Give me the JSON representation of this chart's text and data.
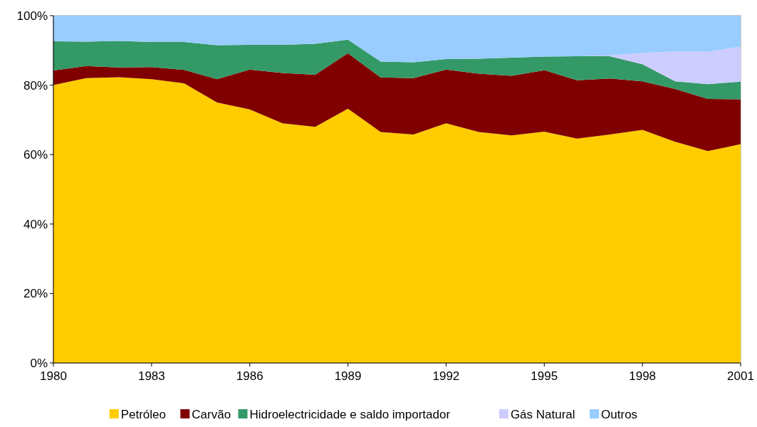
{
  "chart_data": {
    "type": "area",
    "stacked": true,
    "x": [
      1980,
      1981,
      1982,
      1983,
      1984,
      1985,
      1986,
      1987,
      1988,
      1989,
      1990,
      1991,
      1992,
      1993,
      1994,
      1995,
      1996,
      1997,
      1998,
      1999,
      2000,
      2001
    ],
    "series": [
      {
        "name": "Petróleo",
        "color": "#ffcc00",
        "values": [
          80,
          82,
          82.3,
          81.7,
          80.5,
          75,
          73,
          69,
          68,
          73.2,
          66.5,
          65.8,
          69,
          66.5,
          65.5,
          66.6,
          64.6,
          65.8,
          67.1,
          63.7,
          61,
          63
        ]
      },
      {
        "name": "Carvão",
        "color": "#800000",
        "values": [
          4.2,
          3.5,
          2.8,
          3.5,
          3.9,
          6.7,
          11.5,
          14.5,
          15,
          16,
          15.7,
          16.2,
          15.5,
          16.8,
          17.2,
          17.7,
          16.8,
          16.1,
          14,
          15.2,
          15,
          12.9
        ]
      },
      {
        "name": "Hidroelectricidade e saldo importador",
        "color": "#339966",
        "values": [
          8.4,
          7,
          7.6,
          7.2,
          8,
          9.8,
          7.1,
          8.1,
          8.9,
          3.9,
          4.6,
          4.6,
          3,
          4.3,
          5.2,
          3.9,
          6.9,
          6.4,
          4.9,
          2.2,
          4.3,
          5.1
        ]
      },
      {
        "name": "Gás Natural",
        "color": "#ccccff",
        "values": [
          0,
          0,
          0,
          0,
          0,
          0,
          0,
          0,
          0,
          0,
          0,
          0,
          0,
          0,
          0,
          0,
          0,
          0.2,
          3.3,
          8.6,
          9.3,
          10.1
        ]
      },
      {
        "name": "Outros",
        "color": "#99ccff",
        "values": [
          7.4,
          7.5,
          7.3,
          7.6,
          7.6,
          8.5,
          8.4,
          8.4,
          8.1,
          6.9,
          13.2,
          13.4,
          12.5,
          12.4,
          12.1,
          11.8,
          11.7,
          11.5,
          10.7,
          10.3,
          10.4,
          8.9
        ]
      }
    ],
    "xlim": [
      1980,
      2001
    ],
    "xticks": [
      1980,
      1983,
      1986,
      1989,
      1992,
      1995,
      1998,
      2001
    ],
    "ylim": [
      0,
      100
    ],
    "yticks": [
      {
        "value": 0,
        "label": "0%"
      },
      {
        "value": 20,
        "label": "20%"
      },
      {
        "value": 40,
        "label": "40%"
      },
      {
        "value": 60,
        "label": "60%"
      },
      {
        "value": 80,
        "label": "80%"
      },
      {
        "value": 100,
        "label": "100%"
      }
    ],
    "legend": "bottom"
  }
}
